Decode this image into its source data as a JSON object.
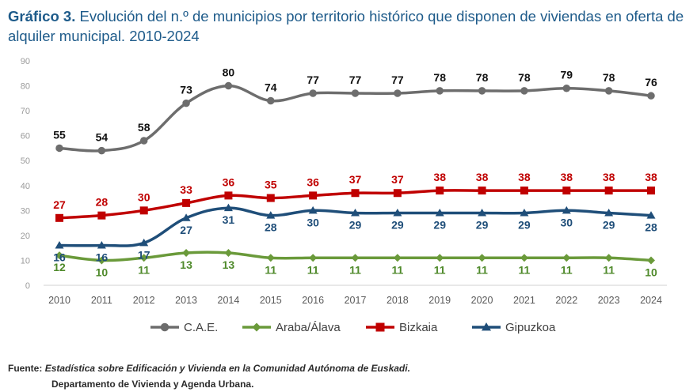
{
  "title": {
    "label": "Gráfico 3.",
    "text": "Evolución del n.º de municipios por territorio histórico que disponen de viviendas en oferta de alquiler municipal. 2010-2024"
  },
  "chart_data": {
    "type": "line",
    "title": "Evolución del n.º de municipios por territorio histórico que disponen de viviendas en oferta de alquiler municipal. 2010-2024",
    "xlabel": "",
    "ylabel": "",
    "ylim": [
      0,
      90
    ],
    "yticks": [
      0,
      10,
      20,
      30,
      40,
      50,
      60,
      70,
      80,
      90
    ],
    "grid": false,
    "legend_position": "bottom",
    "categories": [
      "2010",
      "2011",
      "2012",
      "2013",
      "2014",
      "2015",
      "2016",
      "2017",
      "2018",
      "2019",
      "2020",
      "2021",
      "2022",
      "2023",
      "2024"
    ],
    "series": [
      {
        "name": "C.A.E.",
        "color": "#6d6d6d",
        "label_color": "#111111",
        "marker": "circle",
        "label_pos": "above",
        "values": [
          55,
          54,
          58,
          73,
          80,
          74,
          77,
          77,
          77,
          78,
          78,
          78,
          79,
          78,
          76
        ]
      },
      {
        "name": "Araba/Álava",
        "color": "#6a9a3a",
        "label_color": "#4f8a2b",
        "marker": "diamond",
        "label_pos": "below",
        "values": [
          12,
          10,
          11,
          13,
          13,
          11,
          11,
          11,
          11,
          11,
          11,
          11,
          11,
          11,
          10
        ]
      },
      {
        "name": "Bizkaia",
        "color": "#c00000",
        "label_color": "#c00000",
        "marker": "square",
        "label_pos": "above",
        "values": [
          27,
          28,
          30,
          33,
          36,
          35,
          36,
          37,
          37,
          38,
          38,
          38,
          38,
          38,
          38
        ]
      },
      {
        "name": "Gipuzkoa",
        "color": "#1f4e79",
        "label_color": "#1f4e79",
        "marker": "triangle",
        "label_pos": "below",
        "values": [
          16,
          16,
          17,
          27,
          31,
          28,
          30,
          29,
          29,
          29,
          29,
          29,
          30,
          29,
          28
        ]
      }
    ]
  },
  "source": {
    "label": "Fuente:",
    "reference": "Estadística sobre Edificación y Vivienda en la Comunidad Autónoma de Euskadi.",
    "department": "Departamento de Vivienda y Agenda Urbana."
  }
}
